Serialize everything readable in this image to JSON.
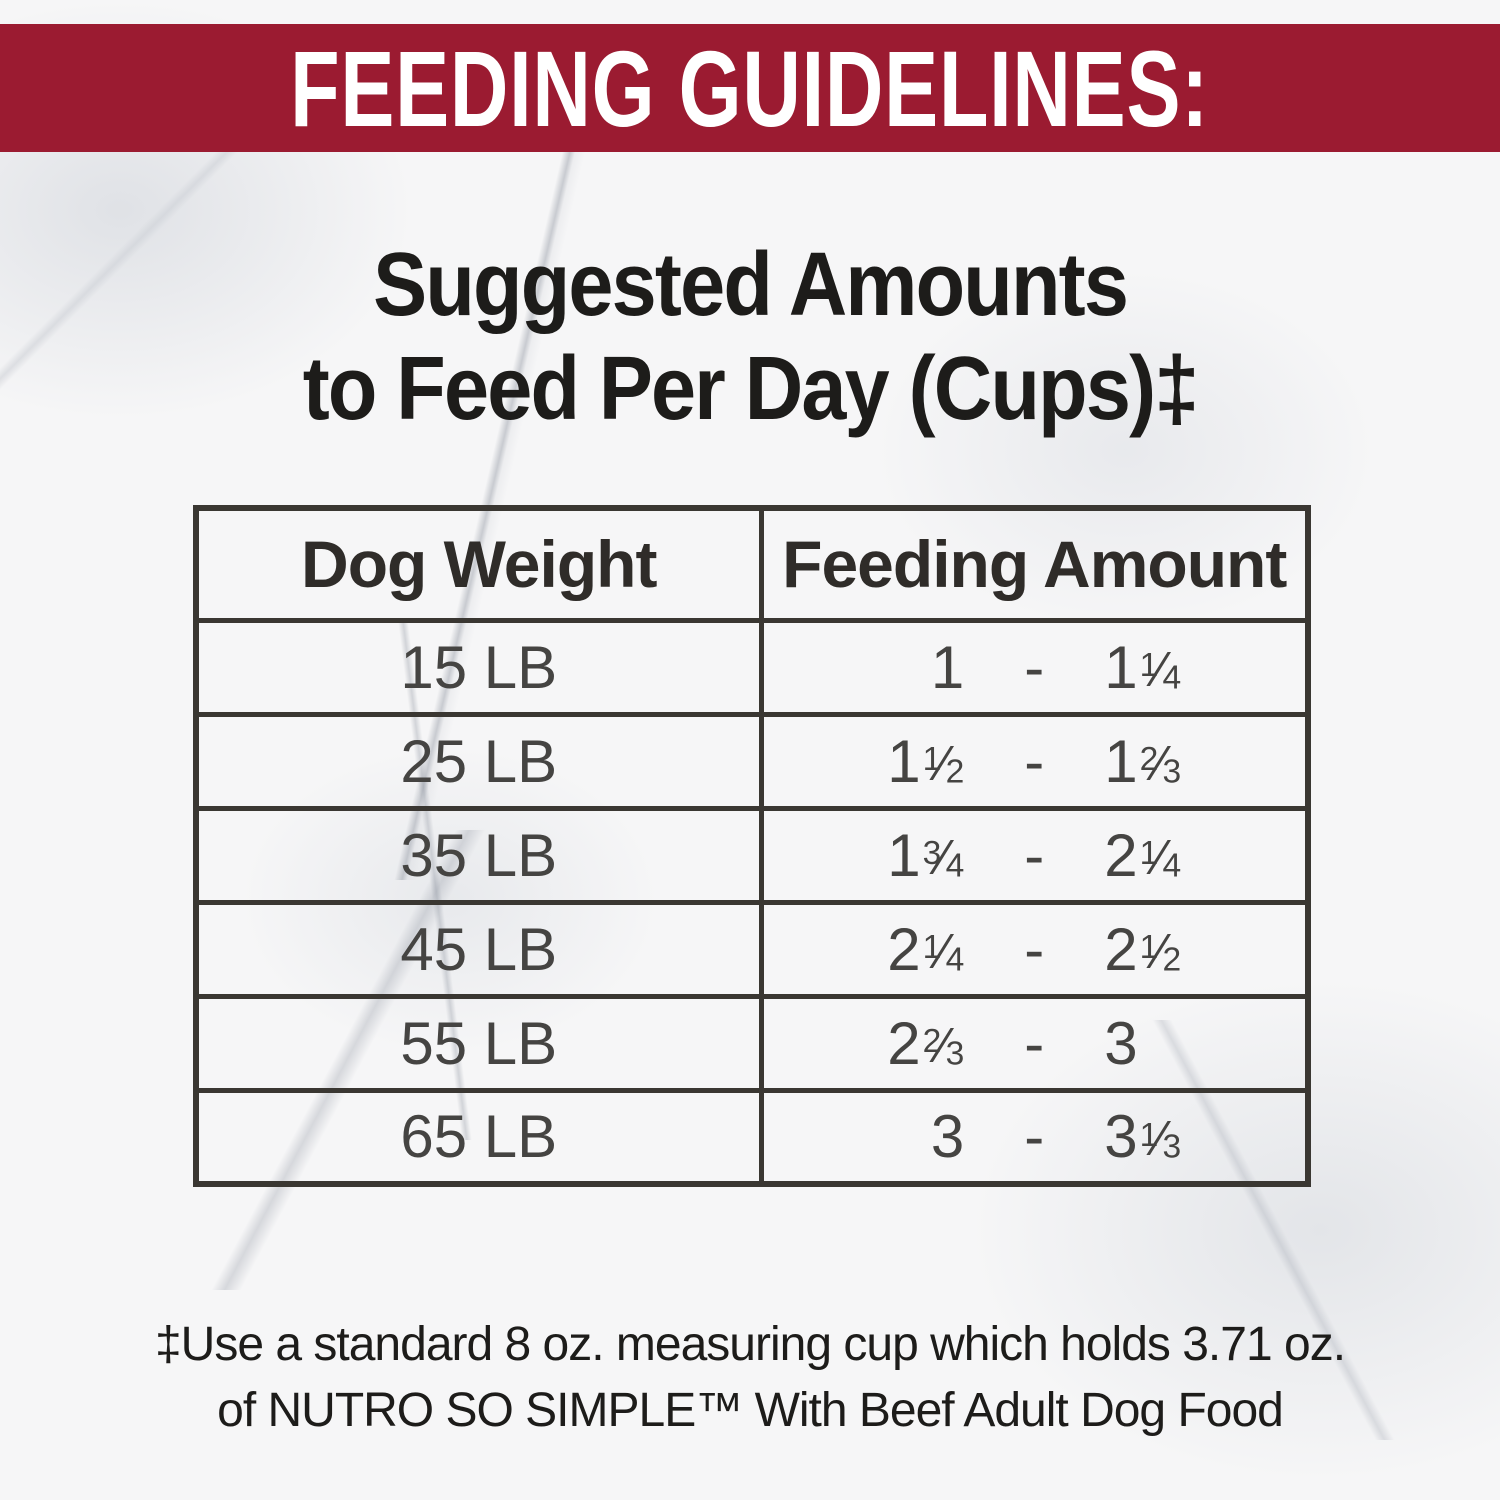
{
  "colors": {
    "banner-bg": "#9B1B31",
    "banner-ink": "#FFFFFF",
    "ink": "#1D1C1A",
    "cell-ink": "#454442",
    "line": "#3A3732"
  },
  "banner": {
    "label": "FEEDING GUIDELINES:"
  },
  "heading": {
    "line1": "Suggested Amounts",
    "line2": "to Feed Per Day (Cups)‡"
  },
  "chart_data": {
    "type": "table",
    "title": "Suggested Amounts to Feed Per Day (Cups)‡",
    "columns": [
      "Dog Weight",
      "Feeding Amount"
    ],
    "units": "cups per day",
    "separator": "-",
    "rows": [
      {
        "weight": "15 LB",
        "amount_min": "1",
        "amount_max": "1 1/4"
      },
      {
        "weight": "25 LB",
        "amount_min": "1 1/2",
        "amount_max": "1 2/3"
      },
      {
        "weight": "35 LB",
        "amount_min": "1 3/4",
        "amount_max": "2 1/4"
      },
      {
        "weight": "45 LB",
        "amount_min": "2 1/4",
        "amount_max": "2 1/2"
      },
      {
        "weight": "55 LB",
        "amount_min": "2 2/3",
        "amount_max": "3"
      },
      {
        "weight": "65 LB",
        "amount_min": "3",
        "amount_max": "3 1/3"
      }
    ]
  },
  "footnote": {
    "line1": "‡Use a standard 8 oz. measuring cup which holds 3.71 oz.",
    "line2": "of NUTRO SO SIMPLE™ With Beef Adult Dog Food"
  }
}
